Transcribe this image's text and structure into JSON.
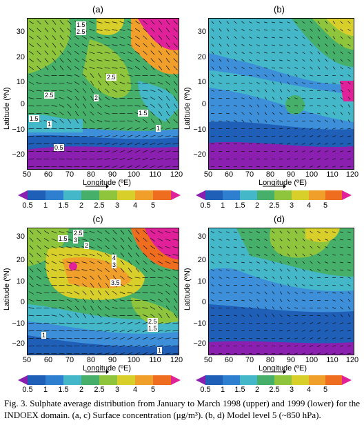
{
  "panels": [
    {
      "letter": "(a)",
      "xlabel": "Longitude (ºE)",
      "ylabel": "Latitude (ºN)",
      "contour_labels": [
        "1.5",
        "2.5",
        "2.5",
        "2",
        "2.5",
        "1.5",
        "1.5",
        "1",
        "1",
        "0.5"
      ]
    },
    {
      "letter": "(b)",
      "xlabel": "Longitude (ºE)",
      "ylabel": "Latitude (ºN)",
      "contour_labels": []
    },
    {
      "letter": "(c)",
      "xlabel": "Longitude (ºE)",
      "ylabel": "Latitude (ºN)",
      "contour_labels": [
        "2.5",
        "1.5",
        "3",
        "2",
        "4",
        "3",
        "3.5",
        "2.5",
        "1.5",
        "1",
        "1"
      ]
    },
    {
      "letter": "(d)",
      "xlabel": "Longitude (ºE)",
      "ylabel": "Latitude (ºN)",
      "contour_labels": []
    }
  ],
  "x_ticks": [
    "50",
    "60",
    "70",
    "80",
    "90",
    "100",
    "110",
    "120"
  ],
  "y_ticks": [
    "30",
    "20",
    "10",
    "0",
    "−10",
    "−20"
  ],
  "colorbar_ticks": [
    "0.5",
    "1",
    "1.5",
    "2",
    "2.5",
    "3",
    "4",
    "5"
  ],
  "colors": {
    "purple": "#8a1fb0",
    "blue_dark": "#1f5fb8",
    "blue": "#3c8fd8",
    "cyan": "#44b7c9",
    "green": "#46b06a",
    "lgreen": "#8fc53c",
    "yellow": "#d8cf2a",
    "orange": "#f0a02a",
    "dorange": "#ee6d1e",
    "magenta": "#e0219a"
  },
  "caption": "Fig. 3. Sulphate average distribution from January to March 1998 (upper) and 1999 (lower) for the INDOEX domain. (a, c) Surface concentration (μg/m³). (b, d) Model level 5 (~850 hPa)."
}
